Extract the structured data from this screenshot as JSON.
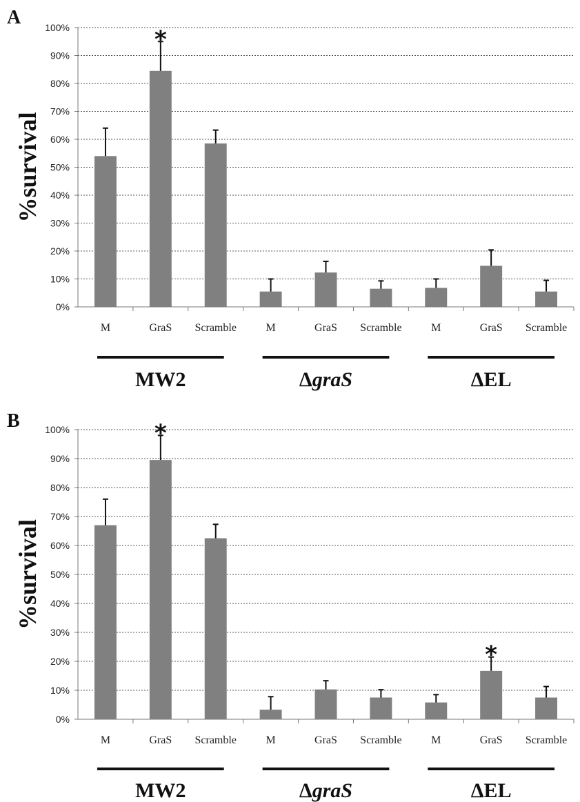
{
  "chart_data": [
    {
      "type": "bar",
      "panel": "A",
      "ylabel": "%survival",
      "ylim": [
        0,
        100
      ],
      "yticks": [
        "0%",
        "10%",
        "20%",
        "30%",
        "40%",
        "50%",
        "60%",
        "70%",
        "80%",
        "90%",
        "100%"
      ],
      "grid": true,
      "categories": [
        "M",
        "GraS",
        "Scramble",
        "M",
        "GraS",
        "Scramble",
        "M",
        "GraS",
        "Scramble"
      ],
      "values": [
        54,
        84.5,
        58.5,
        5.5,
        12.3,
        6.5,
        6.8,
        14.7,
        5.5
      ],
      "errors": [
        10,
        10.5,
        4.8,
        4.5,
        4,
        2.8,
        3.2,
        5.7,
        4
      ],
      "significant": [
        "",
        "*",
        "",
        "",
        "",
        "",
        "",
        "",
        ""
      ],
      "groups": [
        {
          "label_prefix": "",
          "label_main": "MW2",
          "italic": false
        },
        {
          "label_prefix": "Δ",
          "label_main": "graS",
          "italic": true
        },
        {
          "label_prefix": "",
          "label_main": "ΔEL",
          "italic": false
        }
      ],
      "bar_color": "#808080"
    },
    {
      "type": "bar",
      "panel": "B",
      "ylabel": "%survival",
      "ylim": [
        0,
        100
      ],
      "yticks": [
        "0%",
        "10%",
        "20%",
        "30%",
        "40%",
        "50%",
        "60%",
        "70%",
        "80%",
        "90%",
        "100%"
      ],
      "grid": true,
      "categories": [
        "M",
        "GraS",
        "Scramble",
        "M",
        "GraS",
        "Scramble",
        "M",
        "GraS",
        "Scramble"
      ],
      "values": [
        67,
        89.5,
        62.5,
        3.3,
        10.3,
        7.5,
        5.8,
        16.7,
        7.5
      ],
      "errors": [
        9,
        8.5,
        4.8,
        4.5,
        3,
        2.7,
        2.7,
        4.8,
        3.8
      ],
      "significant": [
        "",
        "*",
        "",
        "",
        "",
        "",
        "",
        "*",
        ""
      ],
      "groups": [
        {
          "label_prefix": "",
          "label_main": "MW2",
          "italic": false
        },
        {
          "label_prefix": "Δ",
          "label_main": "graS",
          "italic": true
        },
        {
          "label_prefix": "",
          "label_main": "ΔEL",
          "italic": false
        }
      ],
      "bar_color": "#808080"
    }
  ]
}
